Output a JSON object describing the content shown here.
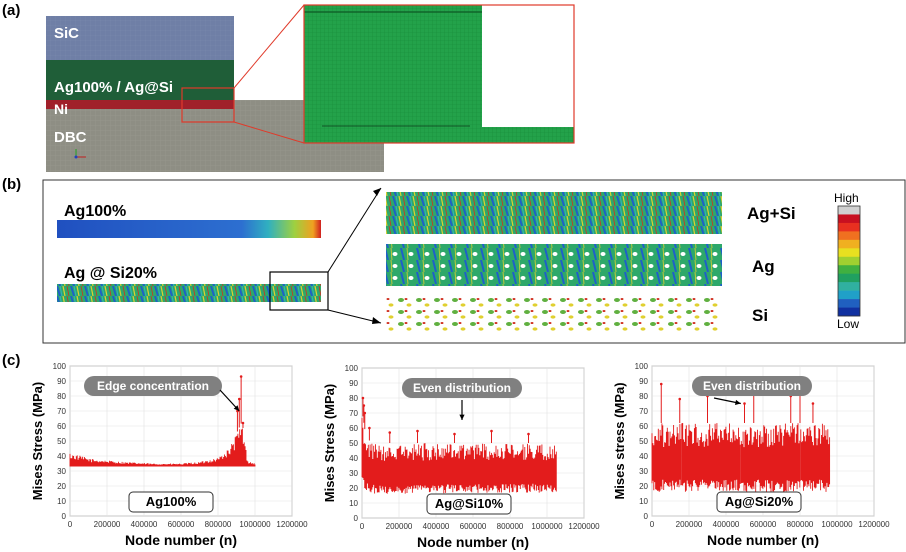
{
  "panels": {
    "a": {
      "label": "(a)",
      "layers": {
        "sic": "SiC",
        "ag": "Ag100% / Ag@Si",
        "ni": "Ni",
        "dbc": "DBC"
      },
      "colors": {
        "sic": "#6f7fa6",
        "ag": "#1f6e3a",
        "ni": "#a0202a",
        "dbc": "#8e8e84",
        "mesh": "#1f9d45",
        "zoom_frame": "#e03a2a"
      }
    },
    "b": {
      "label": "(b)",
      "left": {
        "ag100": "Ag100%",
        "agsi20": "Ag @ Si20%"
      },
      "strips": [
        "Ag+Si",
        "Ag",
        "Si"
      ],
      "colorbar": {
        "high": "High",
        "low": "Low",
        "colors": [
          "#d0d0d0",
          "#c81020",
          "#e83020",
          "#f07020",
          "#f0b020",
          "#e8e020",
          "#a0d030",
          "#40b040",
          "#20a060",
          "#30b0a0",
          "#20a0c8",
          "#2060c0",
          "#1030a0"
        ]
      }
    },
    "c": {
      "label": "(c)",
      "series_color": "#e31c1c"
    }
  },
  "chart_data": [
    {
      "type": "scatter",
      "title": "",
      "xlabel": "Node number (n)",
      "ylabel": "Mises Stress (MPa)",
      "xlim": [
        0,
        1200000
      ],
      "ylim": [
        0,
        100
      ],
      "xticks": [
        "0",
        "200000",
        "400000",
        "600000",
        "800000",
        "1000000",
        "1200000"
      ],
      "yticks": [
        "0",
        "10",
        "20",
        "30",
        "40",
        "50",
        "60",
        "70",
        "80",
        "90",
        "100"
      ],
      "annotation": "Edge concentration",
      "box_label": "Ag100%",
      "band": {
        "x": [
          0,
          120000,
          300000,
          450000,
          600000,
          700000,
          800000,
          860000,
          900000,
          930000,
          960000,
          1000000
        ],
        "low": [
          33,
          33,
          33,
          33,
          33,
          33,
          33,
          33,
          33,
          33,
          33,
          33
        ],
        "high": [
          42,
          38,
          36,
          35,
          35,
          36,
          39,
          45,
          55,
          63,
          37,
          35
        ]
      },
      "peaks": {
        "x": [
          905000,
          915000,
          925000,
          935000
        ],
        "y": [
          70,
          78,
          93,
          62
        ]
      }
    },
    {
      "type": "scatter",
      "title": "",
      "xlabel": "Node number (n)",
      "ylabel": "Mises Stress (MPa)",
      "xlim": [
        0,
        1200000
      ],
      "ylim": [
        0,
        100
      ],
      "xticks": [
        "0",
        "200000",
        "400000",
        "600000",
        "800000",
        "1000000",
        "1200000"
      ],
      "yticks": [
        "0",
        "10",
        "20",
        "30",
        "40",
        "50",
        "60",
        "70",
        "80",
        "90",
        "100"
      ],
      "annotation": "Even distribution",
      "box_label": "Ag@Si10%",
      "band": {
        "x": [
          0,
          20000,
          50000,
          1050000
        ],
        "low": [
          20,
          18,
          16,
          17
        ],
        "high": [
          72,
          55,
          50,
          50
        ]
      },
      "peaks": {
        "x": [
          5000,
          10000,
          15000,
          40000,
          150000,
          300000,
          500000,
          700000,
          900000
        ],
        "y": [
          80,
          75,
          70,
          60,
          57,
          58,
          56,
          58,
          56
        ]
      }
    },
    {
      "type": "scatter",
      "title": "",
      "xlabel": "Node number (n)",
      "ylabel": "Mises stress (MPa)",
      "xlim": [
        0,
        1200000
      ],
      "ylim": [
        0,
        100
      ],
      "xticks": [
        "0",
        "200000",
        "400000",
        "600000",
        "800000",
        "1000000",
        "1200000"
      ],
      "yticks": [
        "0",
        "10",
        "20",
        "30",
        "40",
        "50",
        "60",
        "70",
        "80",
        "90",
        "100"
      ],
      "annotation": "Even distribution",
      "box_label": "Ag@Si20%",
      "band": {
        "x": [
          0,
          960000
        ],
        "low": [
          16,
          16
        ],
        "high": [
          62,
          62
        ]
      },
      "peaks": {
        "x": [
          50000,
          150000,
          300000,
          500000,
          550000,
          750000,
          800000,
          870000
        ],
        "y": [
          88,
          78,
          80,
          75,
          90,
          80,
          85,
          75
        ]
      }
    }
  ]
}
